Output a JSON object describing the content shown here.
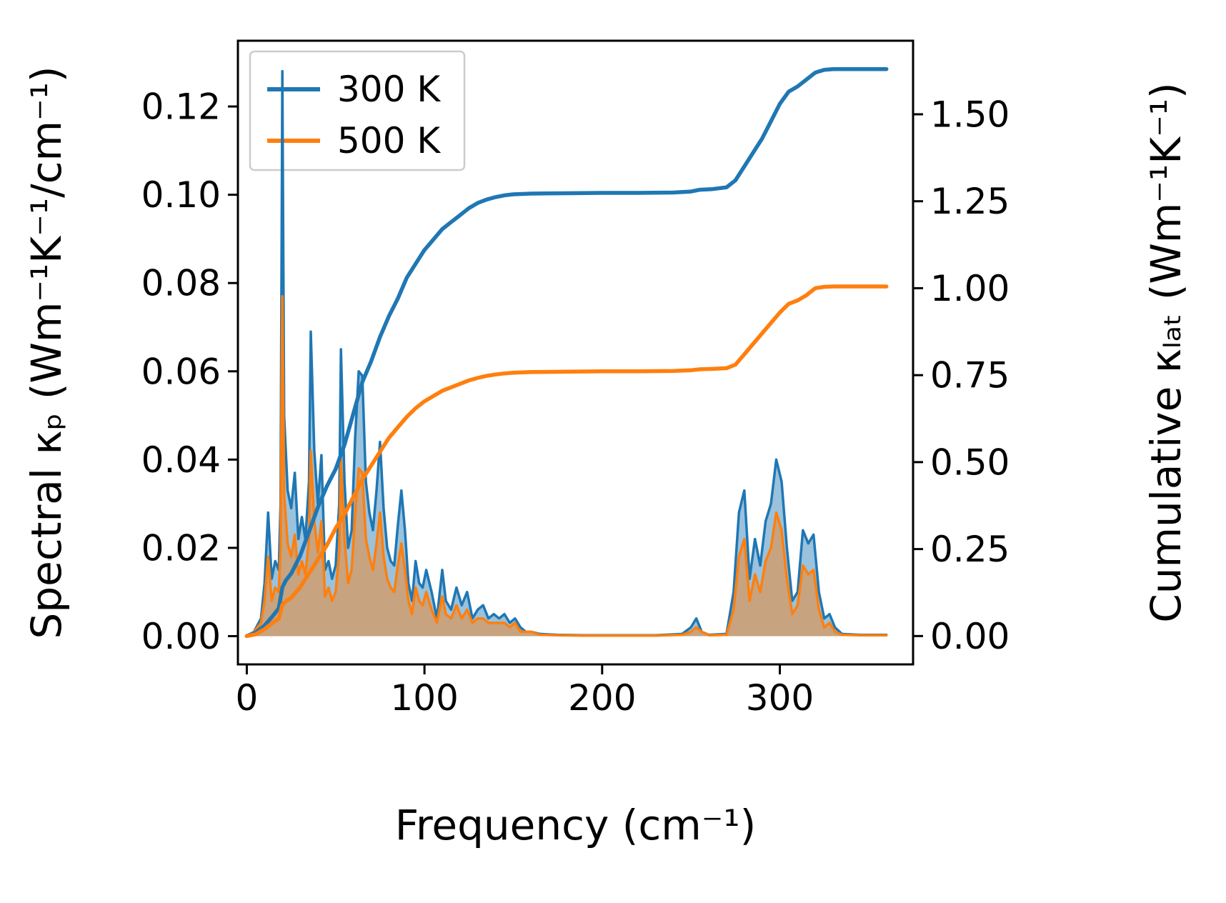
{
  "chart_data": {
    "type": "line",
    "title": "",
    "xlabel": "Frequency (cm⁻¹)",
    "ylabel_left": "Spectral κₚ (Wm⁻¹K⁻¹/cm⁻¹)",
    "ylabel_right": "Cumulative κₗₐₜ (Wm⁻¹K⁻¹)",
    "grid": false,
    "xlim": [
      -5,
      375
    ],
    "ylim_left": [
      -0.0064,
      0.1349
    ],
    "ylim_right": [
      -0.0815,
      1.7115
    ],
    "xticks": [
      0,
      100,
      200,
      300
    ],
    "xtick_labels": [
      "0",
      "100",
      "200",
      "300"
    ],
    "yticks_left": [
      0,
      0.02,
      0.04,
      0.06,
      0.08,
      0.1,
      0.12
    ],
    "ytick_left_labels": [
      "0.00",
      "0.02",
      "0.04",
      "0.06",
      "0.08",
      "0.10",
      "0.12"
    ],
    "yticks_right": [
      0,
      0.25,
      0.5,
      0.75,
      1.0,
      1.25,
      1.5
    ],
    "ytick_right_labels": [
      "0.00",
      "0.25",
      "0.50",
      "0.75",
      "1.00",
      "1.25",
      "1.50"
    ],
    "legend": {
      "position": "upper-left",
      "entries": [
        "300 K",
        "500 K"
      ]
    },
    "colors": {
      "t300": "#1f77b4",
      "t500": "#ff7f0e"
    },
    "series": [
      {
        "id": "spectral-300k",
        "name": "300 K spectral kappa_p",
        "axis": "left",
        "color": "#1f77b4",
        "fill": true,
        "fill_opacity": 0.45,
        "x": [
          0,
          4,
          8,
          10,
          12,
          14,
          16,
          18,
          19,
          20,
          21,
          23,
          25,
          27,
          29,
          31,
          33,
          35,
          36,
          38,
          40,
          42,
          44,
          46,
          48,
          50,
          52,
          53,
          55,
          57,
          59,
          61,
          63,
          65,
          67,
          69,
          71,
          73,
          75,
          77,
          79,
          81,
          83,
          85,
          87,
          89,
          91,
          93,
          95,
          97,
          99,
          101,
          104,
          107,
          110,
          112,
          115,
          118,
          121,
          124,
          127,
          130,
          133,
          136,
          139,
          142,
          145,
          148,
          151,
          154,
          157,
          160,
          165,
          175,
          190,
          210,
          230,
          245,
          250,
          253,
          256,
          260,
          270,
          274,
          277,
          280,
          283,
          286,
          289,
          292,
          295,
          298,
          301,
          304,
          307,
          310,
          313,
          316,
          319,
          322,
          325,
          328,
          331,
          335,
          345,
          360
        ],
        "y": [
          0,
          0.001,
          0.004,
          0.012,
          0.028,
          0.013,
          0.017,
          0.015,
          0.03,
          0.128,
          0.05,
          0.033,
          0.029,
          0.037,
          0.022,
          0.027,
          0.022,
          0.035,
          0.069,
          0.042,
          0.03,
          0.041,
          0.015,
          0.017,
          0.013,
          0.016,
          0.03,
          0.065,
          0.035,
          0.02,
          0.024,
          0.045,
          0.06,
          0.059,
          0.035,
          0.028,
          0.024,
          0.033,
          0.044,
          0.029,
          0.02,
          0.017,
          0.016,
          0.025,
          0.033,
          0.024,
          0.012,
          0.008,
          0.017,
          0.012,
          0.011,
          0.015,
          0.01,
          0.004,
          0.015,
          0.008,
          0.006,
          0.011,
          0.007,
          0.01,
          0.004,
          0.006,
          0.007,
          0.004,
          0.005,
          0.004,
          0.005,
          0.003,
          0.004,
          0.002,
          0.001,
          0.001,
          0.0005,
          0.0003,
          0.0002,
          0.0002,
          0.0002,
          0.0005,
          0.002,
          0.004,
          0.001,
          0.0003,
          0.0005,
          0.01,
          0.028,
          0.033,
          0.013,
          0.022,
          0.016,
          0.026,
          0.03,
          0.04,
          0.035,
          0.02,
          0.008,
          0.01,
          0.024,
          0.021,
          0.023,
          0.01,
          0.004,
          0.005,
          0.002,
          0.0005,
          0.0003,
          0.0003
        ]
      },
      {
        "id": "spectral-500k",
        "name": "500 K spectral kappa_p",
        "axis": "left",
        "color": "#ff7f0e",
        "fill": true,
        "fill_opacity": 0.45,
        "x": [
          0,
          4,
          8,
          10,
          12,
          14,
          16,
          18,
          19,
          20,
          21,
          23,
          25,
          27,
          29,
          31,
          33,
          35,
          36,
          38,
          40,
          42,
          44,
          46,
          48,
          50,
          52,
          53,
          55,
          57,
          59,
          61,
          63,
          65,
          67,
          69,
          71,
          73,
          75,
          77,
          79,
          81,
          83,
          85,
          87,
          89,
          91,
          93,
          95,
          97,
          99,
          101,
          104,
          107,
          110,
          112,
          115,
          118,
          121,
          124,
          127,
          130,
          133,
          136,
          139,
          142,
          145,
          148,
          151,
          154,
          157,
          160,
          165,
          175,
          190,
          210,
          230,
          245,
          250,
          253,
          256,
          260,
          270,
          274,
          277,
          280,
          283,
          286,
          289,
          292,
          295,
          298,
          301,
          304,
          307,
          310,
          313,
          316,
          319,
          322,
          325,
          328,
          331,
          335,
          345,
          360
        ],
        "y": [
          0,
          0.001,
          0.003,
          0.008,
          0.018,
          0.008,
          0.011,
          0.01,
          0.02,
          0.077,
          0.032,
          0.021,
          0.018,
          0.023,
          0.014,
          0.017,
          0.014,
          0.022,
          0.042,
          0.026,
          0.019,
          0.026,
          0.009,
          0.011,
          0.008,
          0.01,
          0.019,
          0.04,
          0.022,
          0.012,
          0.015,
          0.028,
          0.038,
          0.037,
          0.022,
          0.018,
          0.015,
          0.021,
          0.028,
          0.018,
          0.013,
          0.011,
          0.01,
          0.016,
          0.021,
          0.015,
          0.008,
          0.005,
          0.011,
          0.008,
          0.007,
          0.01,
          0.006,
          0.003,
          0.009,
          0.005,
          0.004,
          0.007,
          0.004,
          0.006,
          0.003,
          0.004,
          0.004,
          0.003,
          0.003,
          0.003,
          0.003,
          0.002,
          0.003,
          0.001,
          0.001,
          0.001,
          0.0003,
          0.0002,
          0.0001,
          0.0001,
          0.0001,
          0.0003,
          0.001,
          0.002,
          0.001,
          0.0002,
          0.0003,
          0.006,
          0.018,
          0.022,
          0.008,
          0.014,
          0.01,
          0.017,
          0.02,
          0.028,
          0.024,
          0.013,
          0.005,
          0.007,
          0.016,
          0.014,
          0.015,
          0.006,
          0.002,
          0.003,
          0.001,
          0.0003,
          0.0002,
          0.0002
        ]
      },
      {
        "id": "cumulative-300k",
        "name": "300 K cumulative kappa_lat",
        "axis": "right",
        "color": "#1f77b4",
        "fill": false,
        "x": [
          0,
          5,
          10,
          15,
          18,
          20,
          22,
          25,
          30,
          35,
          40,
          45,
          50,
          55,
          60,
          65,
          70,
          75,
          80,
          85,
          90,
          95,
          100,
          105,
          110,
          115,
          120,
          125,
          130,
          135,
          140,
          145,
          150,
          160,
          180,
          200,
          220,
          240,
          250,
          255,
          262,
          270,
          275,
          280,
          285,
          290,
          295,
          300,
          305,
          310,
          315,
          320,
          325,
          330,
          340,
          360
        ],
        "y": [
          0,
          0.01,
          0.03,
          0.06,
          0.08,
          0.14,
          0.16,
          0.18,
          0.23,
          0.3,
          0.37,
          0.43,
          0.48,
          0.55,
          0.64,
          0.73,
          0.79,
          0.86,
          0.92,
          0.97,
          1.03,
          1.07,
          1.11,
          1.14,
          1.17,
          1.19,
          1.21,
          1.23,
          1.245,
          1.255,
          1.262,
          1.267,
          1.27,
          1.272,
          1.273,
          1.274,
          1.274,
          1.275,
          1.278,
          1.283,
          1.285,
          1.29,
          1.31,
          1.35,
          1.39,
          1.43,
          1.48,
          1.53,
          1.565,
          1.58,
          1.6,
          1.62,
          1.628,
          1.63,
          1.63,
          1.63
        ]
      },
      {
        "id": "cumulative-500k",
        "name": "500 K cumulative kappa_lat",
        "axis": "right",
        "color": "#ff7f0e",
        "fill": false,
        "x": [
          0,
          5,
          10,
          15,
          18,
          20,
          22,
          25,
          30,
          35,
          40,
          45,
          50,
          55,
          60,
          65,
          70,
          75,
          80,
          85,
          90,
          95,
          100,
          105,
          110,
          115,
          120,
          125,
          130,
          135,
          140,
          145,
          150,
          160,
          180,
          200,
          220,
          240,
          250,
          255,
          262,
          270,
          275,
          280,
          285,
          290,
          295,
          300,
          305,
          310,
          315,
          320,
          325,
          330,
          340,
          360
        ],
        "y": [
          0,
          0.005,
          0.02,
          0.04,
          0.05,
          0.09,
          0.1,
          0.11,
          0.14,
          0.18,
          0.22,
          0.26,
          0.31,
          0.35,
          0.4,
          0.45,
          0.49,
          0.53,
          0.57,
          0.6,
          0.63,
          0.655,
          0.675,
          0.69,
          0.705,
          0.715,
          0.725,
          0.735,
          0.742,
          0.748,
          0.752,
          0.755,
          0.757,
          0.759,
          0.76,
          0.761,
          0.761,
          0.762,
          0.764,
          0.767,
          0.768,
          0.77,
          0.78,
          0.81,
          0.84,
          0.87,
          0.9,
          0.93,
          0.955,
          0.965,
          0.98,
          1.0,
          1.004,
          1.005,
          1.005,
          1.005
        ]
      }
    ]
  }
}
